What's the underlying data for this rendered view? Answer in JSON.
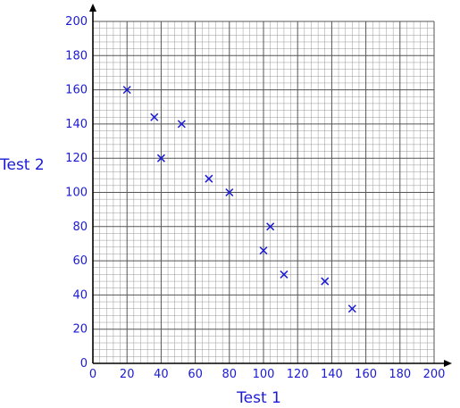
{
  "chart_data": {
    "type": "scatter",
    "title": "",
    "xlabel": "Test 1",
    "ylabel": "Test 2",
    "xlim": [
      0,
      200
    ],
    "ylim": [
      0,
      200
    ],
    "xticks": [
      "0",
      "20",
      "40",
      "60",
      "80",
      "100",
      "120",
      "140",
      "160",
      "180",
      "200"
    ],
    "yticks": [
      "0",
      "20",
      "40",
      "60",
      "80",
      "100",
      "120",
      "140",
      "160",
      "180",
      "200"
    ],
    "grid": true,
    "points": [
      {
        "x": 20,
        "y": 160
      },
      {
        "x": 36,
        "y": 144
      },
      {
        "x": 40,
        "y": 120
      },
      {
        "x": 52,
        "y": 140
      },
      {
        "x": 68,
        "y": 108
      },
      {
        "x": 80,
        "y": 100
      },
      {
        "x": 100,
        "y": 66
      },
      {
        "x": 104,
        "y": 80
      },
      {
        "x": 112,
        "y": 52
      },
      {
        "x": 136,
        "y": 48
      },
      {
        "x": 152,
        "y": 32
      }
    ],
    "colors": {
      "grid": "#999999",
      "axis": "#000000",
      "text": "#1a1ad6",
      "marker": "#1a1ad6"
    }
  }
}
